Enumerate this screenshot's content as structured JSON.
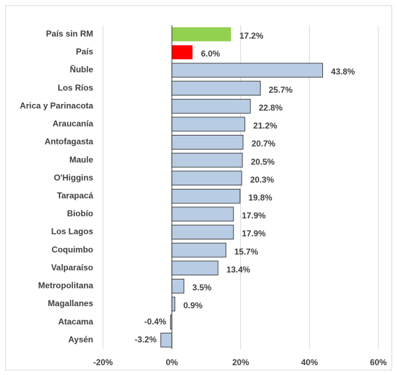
{
  "chart_data": {
    "type": "bar",
    "orientation": "horizontal",
    "categories": [
      "País sin RM",
      "País",
      "Ñuble",
      "Los Ríos",
      "Arica y Parinacota",
      "Araucanía",
      "Antofagasta",
      "Maule",
      "O'Higgins",
      "Tarapacá",
      "Biobío",
      "Los Lagos",
      "Coquimbo",
      "Valparaíso",
      "Metropolitana",
      "Magallanes",
      "Atacama",
      "Aysén"
    ],
    "values": [
      17.2,
      6.0,
      43.8,
      25.7,
      22.8,
      21.2,
      20.7,
      20.5,
      20.3,
      19.8,
      17.9,
      17.9,
      15.7,
      13.4,
      3.5,
      0.9,
      -0.4,
      -3.2
    ],
    "value_labels": [
      "17.2%",
      "6.0%",
      "43.8%",
      "25.7%",
      "22.8%",
      "21.2%",
      "20.7%",
      "20.5%",
      "20.3%",
      "19.8%",
      "17.9%",
      "17.9%",
      "15.7%",
      "13.4%",
      "3.5%",
      "0.9%",
      "-0.4%",
      "-3.2%"
    ],
    "colors": [
      "#92d050",
      "#ff0000",
      "#b8cce4",
      "#b8cce4",
      "#b8cce4",
      "#b8cce4",
      "#b8cce4",
      "#b8cce4",
      "#b8cce4",
      "#b8cce4",
      "#b8cce4",
      "#b8cce4",
      "#b8cce4",
      "#b8cce4",
      "#b8cce4",
      "#b8cce4",
      "#b8cce4",
      "#b8cce4"
    ],
    "xlim": [
      -20,
      60
    ],
    "xticks": [
      {
        "value": -20,
        "label": "-20%"
      },
      {
        "value": 0,
        "label": "0%"
      },
      {
        "value": 20,
        "label": "20%"
      },
      {
        "value": 40,
        "label": "40%"
      },
      {
        "value": 60,
        "label": "60%"
      }
    ],
    "grid": true
  }
}
